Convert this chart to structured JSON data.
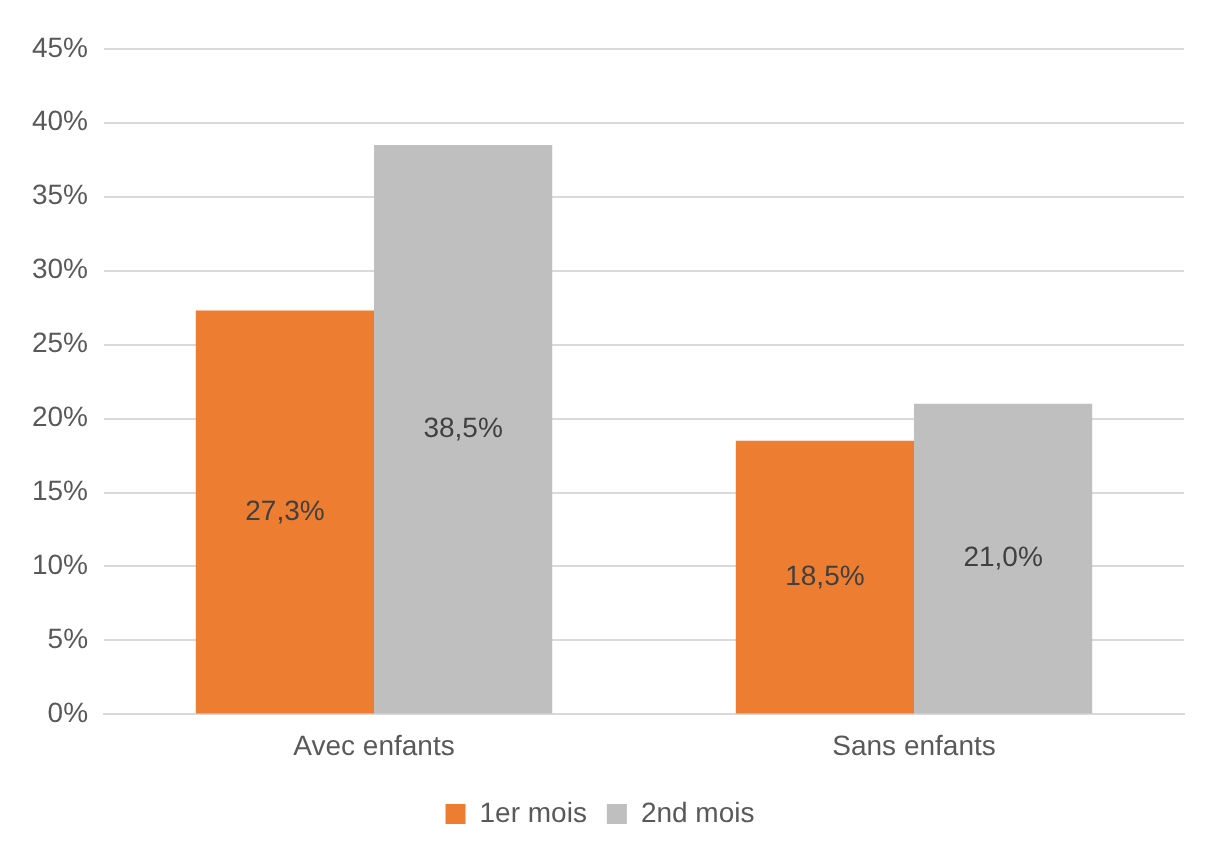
{
  "chart_data": {
    "type": "bar",
    "categories": [
      "Avec enfants",
      "Sans enfants"
    ],
    "series": [
      {
        "name": "1er mois",
        "color": "#ed7d31",
        "values": [
          27.3,
          18.5
        ],
        "value_labels": [
          "27,3%",
          "18,5%"
        ]
      },
      {
        "name": "2nd mois",
        "color": "#bfbfbf",
        "values": [
          38.5,
          21.0
        ],
        "value_labels": [
          "38,5%",
          "21,0%"
        ]
      }
    ],
    "ylim": [
      0,
      45
    ],
    "yticks": [
      {
        "value": 0,
        "label": "0%"
      },
      {
        "value": 5,
        "label": "5%"
      },
      {
        "value": 10,
        "label": "10%"
      },
      {
        "value": 15,
        "label": "15%"
      },
      {
        "value": 20,
        "label": "20%"
      },
      {
        "value": 25,
        "label": "25%"
      },
      {
        "value": 30,
        "label": "30%"
      },
      {
        "value": 35,
        "label": "35%"
      },
      {
        "value": 40,
        "label": "40%"
      },
      {
        "value": 45,
        "label": "45%"
      }
    ],
    "grid": "y",
    "legend": "bottom"
  }
}
